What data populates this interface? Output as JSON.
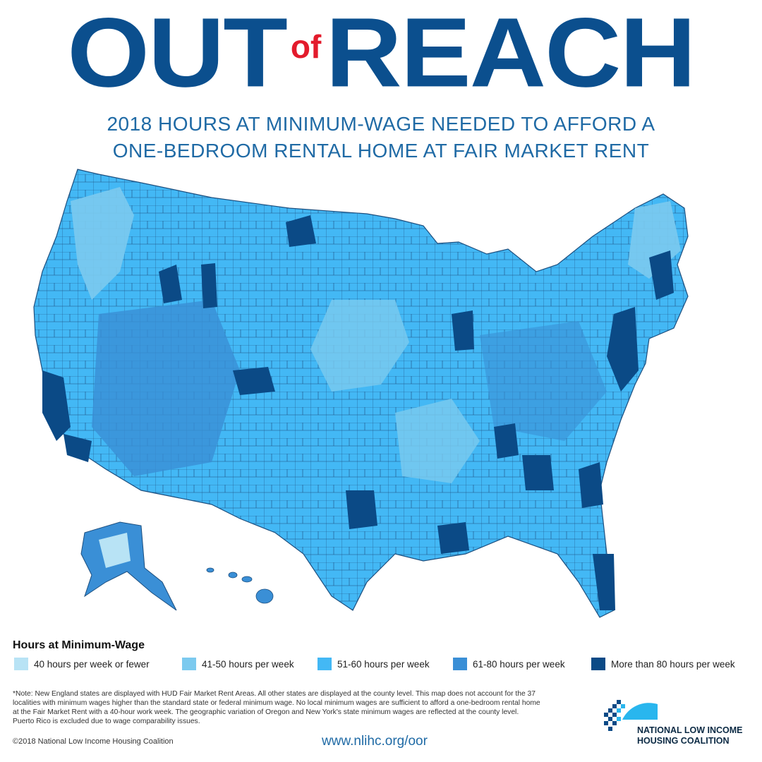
{
  "header": {
    "title_left": "OUT",
    "title_mid": "of",
    "title_right": "REACH",
    "subtitle_line1": "2018 HOURS AT MINIMUM-WAGE NEEDED TO AFFORD A",
    "subtitle_line2": "ONE-BEDROOM RENTAL HOME AT FAIR MARKET RENT"
  },
  "legend": {
    "title": "Hours at Minimum-Wage",
    "items": [
      {
        "label": "40 hours per week or fewer",
        "color": "#b8e3f5"
      },
      {
        "label": "41-50 hours per week",
        "color": "#7ccaef"
      },
      {
        "label": "51-60 hours per week",
        "color": "#43b8f5"
      },
      {
        "label": "61-80 hours per week",
        "color": "#3a8fd6"
      },
      {
        "label": "More than 80 hours per week",
        "color": "#0b4a86"
      }
    ]
  },
  "footer": {
    "note": "*Note: New England states are displayed with HUD Fair Market Rent Areas. All other states are displayed at the county level. This map does not account for the 37 localities with minimum wages higher than the standard state or federal minimum wage. No local minimum wages are sufficient to afford a one-bedroom rental home at the Fair Market Rent with a 40-hour work week. The geographic variation of Oregon and New York's state minimum wages are reflected at the county level. Puerto Rico is excluded due to wage comparability issues.",
    "copyright": "©2018 National Low Income Housing Coalition",
    "url": "www.nlihc.org/oor",
    "org_line1": "NATIONAL LOW INCOME",
    "org_line2": "HOUSING COALITION"
  },
  "colors": {
    "title_blue": "#0b4f8e",
    "accent_red": "#e31b2c",
    "subtitle_blue": "#1f6aa5",
    "border_dark": "#1d4f7f",
    "logo_cyan": "#29b6ee"
  }
}
